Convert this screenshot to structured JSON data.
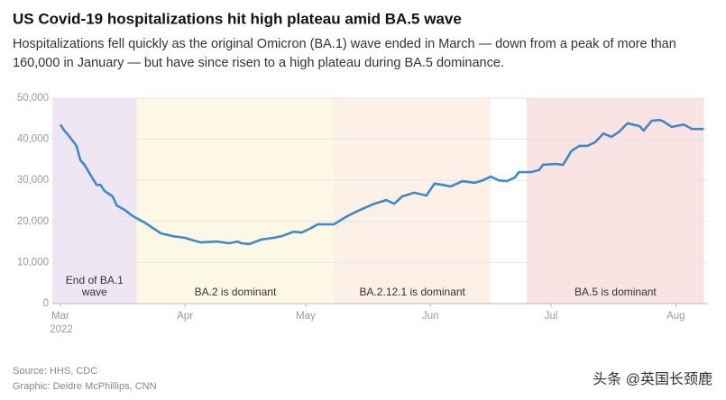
{
  "chart_data": {
    "type": "line",
    "title": "US Covid-19 hospitalizations hit high plateau amid BA.5 wave",
    "subtitle": [
      "Hospitalizations fell quickly as the original Omicron (BA.1) wave ended in March — down from a peak of more than",
      "160,000 in January — but have since risen to a high plateau during BA.5 dominance."
    ],
    "source": "Source: HHS, CDC",
    "credit": "Graphic: Deidre McPhillips, CNN",
    "watermark": "头条 @英国长颈鹿",
    "x_axis_year": "2022",
    "xlim": [
      -2,
      161
    ],
    "xticks": [
      {
        "value": 0,
        "label": "Mar"
      },
      {
        "value": 31,
        "label": "Apr"
      },
      {
        "value": 61,
        "label": "May"
      },
      {
        "value": 92,
        "label": "Jun"
      },
      {
        "value": 122,
        "label": "Jul"
      },
      {
        "value": 153,
        "label": "Aug"
      }
    ],
    "ylim": [
      0,
      50000
    ],
    "yticks": [
      0,
      {
        "value": 10000,
        "label": "10,000"
      },
      {
        "value": 20000,
        "label": "20,000"
      },
      {
        "value": 30000,
        "label": "30,000"
      },
      {
        "value": 40000,
        "label": "40,000"
      },
      {
        "value": 50000,
        "label": "50,000"
      }
    ],
    "grid": true,
    "bands": [
      {
        "label": [
          "End of BA.1",
          "wave"
        ],
        "range": [
          -2,
          19
        ],
        "color": "#efe6f4"
      },
      {
        "label": [
          "BA.2 is dominant"
        ],
        "range": [
          19,
          68
        ],
        "color": "#fdf8e6"
      },
      {
        "label": [
          "BA.2.12.1 is dominant"
        ],
        "range": [
          68,
          107
        ],
        "color": "#fdf0e6"
      },
      {
        "label": [
          "BA.5 is dominant"
        ],
        "range": [
          116,
          160
        ],
        "color": "#fae3e3"
      }
    ],
    "series": [
      {
        "color": "#3f8ac6",
        "x": [
          0,
          1,
          2,
          4,
          5,
          6,
          8,
          9,
          10,
          11,
          13,
          14,
          16,
          18,
          21,
          23,
          25,
          28,
          31,
          33,
          35,
          39,
          42,
          44,
          45,
          47,
          50,
          53,
          55,
          58,
          60,
          62,
          64,
          68,
          71,
          73,
          75,
          78,
          81,
          83,
          85,
          88,
          91,
          93,
          95,
          97,
          100,
          103,
          105,
          107,
          109,
          111,
          113,
          114,
          117,
          119,
          120,
          123,
          125,
          127,
          129,
          131,
          133,
          135,
          137,
          139,
          141,
          144,
          145,
          147,
          149,
          150,
          152,
          153,
          155,
          157,
          158,
          160
        ],
        "values": [
          43600,
          42100,
          41000,
          38400,
          34900,
          33800,
          30500,
          28900,
          28900,
          27400,
          26100,
          23900,
          22800,
          21300,
          19700,
          18400,
          17100,
          16400,
          16000,
          15400,
          14900,
          15100,
          14700,
          15100,
          14700,
          14500,
          15600,
          16000,
          16400,
          17500,
          17300,
          18200,
          19300,
          19300,
          21100,
          22100,
          23000,
          24300,
          25200,
          24300,
          26100,
          27000,
          26300,
          29200,
          28900,
          28500,
          29800,
          29400,
          30000,
          30900,
          30000,
          29800,
          30700,
          32000,
          32000,
          32500,
          33800,
          34000,
          33800,
          37100,
          38400,
          38400,
          39300,
          41400,
          40600,
          41900,
          43900,
          43200,
          42100,
          44500,
          44700,
          44300,
          43000,
          43200,
          43600,
          42500,
          42500,
          42500
        ]
      }
    ]
  }
}
